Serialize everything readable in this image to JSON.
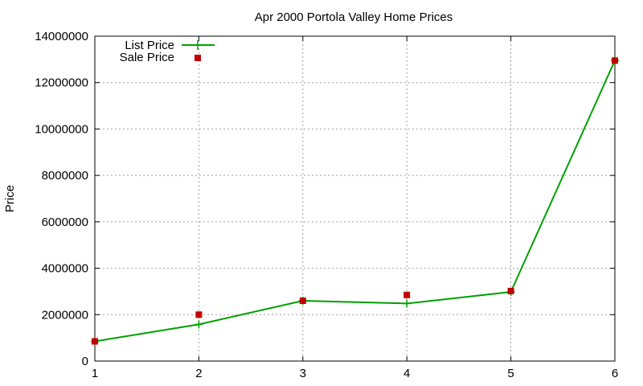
{
  "chart_data": {
    "type": "line",
    "title": "Apr 2000 Portola Valley Home Prices",
    "xlabel": "",
    "ylabel": "Price",
    "x": [
      1,
      2,
      3,
      4,
      5,
      6
    ],
    "xlim": [
      1,
      6
    ],
    "ylim": [
      0,
      14000000
    ],
    "x_ticks": [
      "1",
      "2",
      "3",
      "4",
      "5",
      "6"
    ],
    "y_ticks": [
      "0",
      "2000000",
      "4000000",
      "6000000",
      "8000000",
      "10000000",
      "12000000",
      "14000000"
    ],
    "grid": true,
    "legend_position": "top-left",
    "series": [
      {
        "name": "List Price",
        "style": "linespoints",
        "marker": "plus",
        "color": "#00a000",
        "values": [
          850000,
          1580000,
          2600000,
          2480000,
          2980000,
          12950000
        ]
      },
      {
        "name": "Sale Price",
        "style": "points",
        "marker": "square",
        "color": "#c00000",
        "values": [
          850000,
          2000000,
          2600000,
          2850000,
          3020000,
          12950000
        ]
      }
    ]
  }
}
